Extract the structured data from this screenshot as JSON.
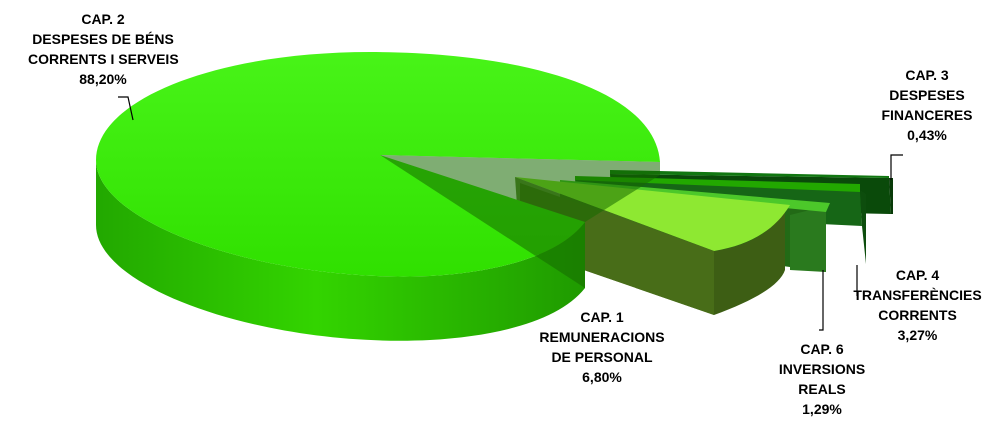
{
  "chart_data": {
    "type": "pie",
    "style": "3d-exploded",
    "legend": "none",
    "slices": [
      {
        "name_lines": [
          "CAP. 2",
          "DESPESES DE BÉNS",
          "CORRENTS I SERVEIS"
        ],
        "value_label": "88,20%",
        "value": 88.2,
        "color": "#33ee00"
      },
      {
        "name_lines": [
          "CAP. 1",
          "REMUNERACIONS",
          "DE PERSONAL"
        ],
        "value_label": "6,80%",
        "value": 6.8,
        "color": "#99ee33"
      },
      {
        "name_lines": [
          "CAP. 6",
          "INVERSIONS",
          "REALS"
        ],
        "value_label": "1,29%",
        "value": 1.29,
        "color": "#44bb22"
      },
      {
        "name_lines": [
          "CAP. 4",
          "TRANSFERÈNCIES",
          "CORRENTS"
        ],
        "value_label": "3,27%",
        "value": 3.27,
        "color": "#22aa00"
      },
      {
        "name_lines": [
          "CAP. 3",
          "DESPESES",
          "FINANCERES"
        ],
        "value_label": "0,43%",
        "value": 0.43,
        "color": "#116611"
      }
    ]
  }
}
